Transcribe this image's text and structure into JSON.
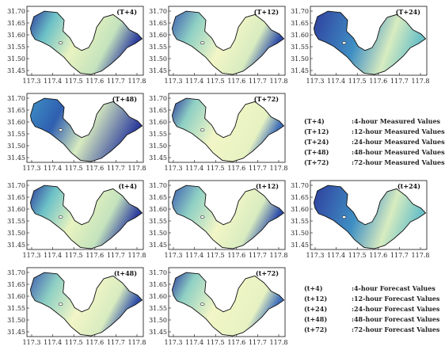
{
  "x_ticks": [
    "117.3",
    "117.4",
    "117.5",
    "117.6",
    "117.7",
    "117.8"
  ],
  "y_ticks": [
    "31.70",
    "31.65",
    "31.60",
    "31.55",
    "31.50",
    "31.45"
  ],
  "panels": [
    {
      "label": "(T+4)",
      "row": 0,
      "col": 0,
      "pattern": "mixed"
    },
    {
      "label": "(T+12)",
      "row": 0,
      "col": 1,
      "pattern": "mixed-light"
    },
    {
      "label": "(T+24)",
      "row": 0,
      "col": 2,
      "pattern": "mostly-blue"
    },
    {
      "label": "(T+48)",
      "row": 1,
      "col": 0,
      "pattern": "blue-spots"
    },
    {
      "label": "(T+72)",
      "row": 1,
      "col": 1,
      "pattern": "light"
    },
    {
      "label": "(t+4)",
      "row": 2,
      "col": 0,
      "pattern": "mixed"
    },
    {
      "label": "(t+12)",
      "row": 2,
      "col": 1,
      "pattern": "mixed-light"
    },
    {
      "label": "(t+24)",
      "row": 2,
      "col": 2,
      "pattern": "mostly-blue"
    },
    {
      "label": "(t+48)",
      "row": 3,
      "col": 0,
      "pattern": "mixed-light"
    },
    {
      "label": "(t+72)",
      "row": 3,
      "col": 1,
      "pattern": "light"
    }
  ],
  "legend_measured": [
    {
      "code": "(T+4)",
      "text": ":4-hour Measured Values"
    },
    {
      "code": "(T+12)",
      "text": ":12-hour Measured Values"
    },
    {
      "code": "(T+24)",
      "text": ":24-hour Measured Values"
    },
    {
      "code": "(T+48)",
      "text": ":48-hour Measured Values"
    },
    {
      "code": "(T+72)",
      "text": ":72-hour Measured Values"
    }
  ],
  "legend_forecast": [
    {
      "code": "(t+4)",
      "text": ":4-hour Forecast Values"
    },
    {
      "code": "(t+12)",
      "text": ":12-hour Forecast Values"
    },
    {
      "code": "(t+24)",
      "text": ":24-hour Forecast Values"
    },
    {
      "code": "(t+48)",
      "text": ":48-hour Forecast Values"
    },
    {
      "code": "(t+72)",
      "text": ":72-hour Forecast Values"
    }
  ],
  "colors": {
    "deep_blue": "#2f3f9e",
    "mid_blue": "#3f8fc4",
    "teal": "#6cc1c7",
    "pale_green": "#c4e3bd",
    "pale_yellow": "#f3f6c6",
    "outline": "#111111"
  }
}
